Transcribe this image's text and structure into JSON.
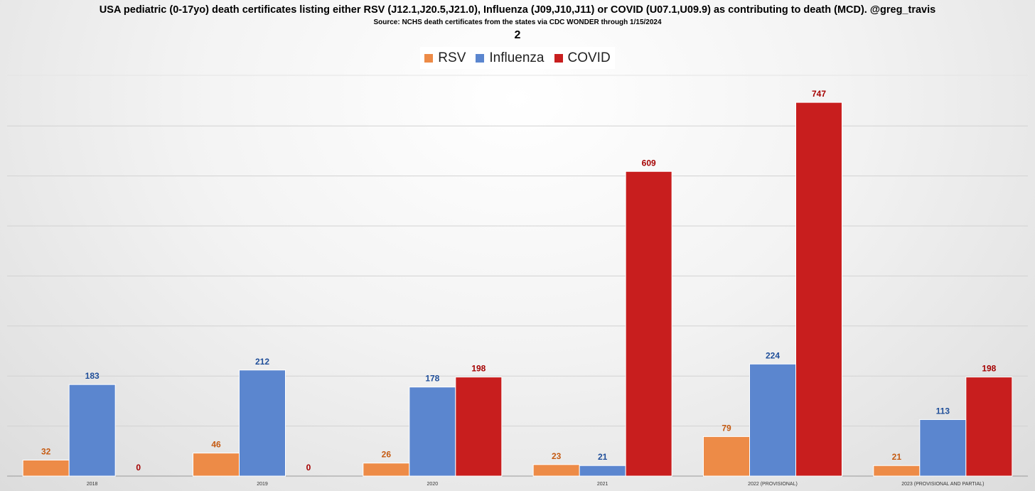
{
  "title": "USA pediatric (0-17yo) death certificates listing either RSV (J12.1,J20.5,J21.0), Influenza (J09,J10,J11) or COVID (U07.1,U09.9) as contributing to death (MCD).  @greg_travis",
  "subtitle": "Source: NCHS death certificates from the states via CDC WONDER through 1/15/2024",
  "page_number": "2",
  "chart_data": {
    "type": "bar",
    "title": "USA pediatric (0-17yo) death certificates listing either RSV (J12.1,J20.5,J21.0), Influenza (J09,J10,J11) or COVID (U07.1,U09.9) as contributing to death (MCD).  @greg_travis",
    "subtitle": "Source: NCHS death certificates from the states via CDC WONDER through 1/15/2024",
    "xlabel": "",
    "ylabel": "",
    "categories": [
      "2018",
      "2019",
      "2020",
      "2021",
      "2022 (PROVISIONAL)",
      "2023 (PROVISIONAL AND PARTIAL)"
    ],
    "series": [
      {
        "name": "RSV",
        "values": [
          32,
          46,
          26,
          23,
          79,
          21
        ],
        "color": "#ED8B47",
        "label_color": "#C55A11"
      },
      {
        "name": "Influenza",
        "values": [
          183,
          212,
          178,
          21,
          224,
          113
        ],
        "color": "#5B86CF",
        "label_color": "#1F4E99"
      },
      {
        "name": "COVID",
        "values": [
          0,
          0,
          198,
          609,
          747,
          198
        ],
        "color": "#C81E1E",
        "label_color": "#A50000"
      }
    ],
    "ylim": [
      0,
      800
    ],
    "gridlines": [
      100,
      200,
      300,
      400,
      500,
      600,
      700
    ],
    "grid": true,
    "legend_position": "top-center",
    "data_labels": true
  }
}
